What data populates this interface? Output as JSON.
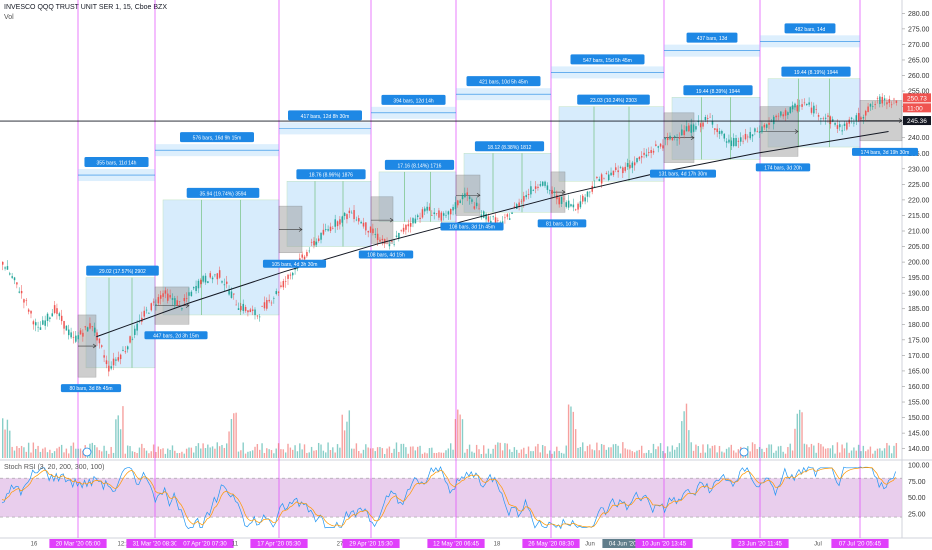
{
  "header": {
    "symbol": "INVESCO QQQ TRUST UNIT SER 1, 15, Cboe BZX",
    "volume_label": "Vol",
    "rsi_label": "Stoch RSI (3, 20, 200, 300, 100)"
  },
  "colors": {
    "up": "#26a69a",
    "down": "#ef5350",
    "session_line": "#e040fb",
    "box_blue": "#90caf9",
    "box_gray": "#9e9e9e",
    "box_green": "#4caf50",
    "label_blue": "#1e88e5",
    "rsi_fill": "#e1bee7",
    "rsi_k": "#2196f3",
    "rsi_d": "#ff9800"
  },
  "chart_data": [
    {
      "type": "line",
      "title": "",
      "y_ticks": [
        140,
        145,
        150,
        155,
        160,
        165,
        170,
        175,
        180,
        185,
        190,
        195,
        200,
        205,
        210,
        215,
        220,
        225,
        230,
        235,
        240,
        245,
        250,
        255,
        260,
        265,
        270,
        275,
        280
      ],
      "ylim": [
        137,
        283
      ],
      "price_markers": [
        {
          "value": "250.73",
          "color": "#ef5350"
        },
        {
          "value": "11:00",
          "color": "#ef5350"
        },
        {
          "value": "245.36",
          "color": "#131722"
        }
      ],
      "horizontal_line": 245.36,
      "x_axis_labels": [
        "16",
        "20 Mar '20 05:00",
        "12:25",
        "31 Mar '20 08:30",
        "07 Apr '20 07:30",
        "11",
        "17 Apr '20 05:30",
        "27",
        "29 Apr '20 15:30",
        "12 May '20 06:45",
        "18",
        "26 May '20 08:30",
        "Jun",
        "04 Jun '20 09:45",
        "10 Jun '20 13:45",
        "23 Jun '20 11:45",
        "Jul",
        "07 Jul '20 05:45"
      ],
      "price_path": [
        {
          "i": 0,
          "v": 200
        },
        {
          "i": 8,
          "v": 190
        },
        {
          "i": 15,
          "v": 178
        },
        {
          "i": 22,
          "v": 185
        },
        {
          "i": 30,
          "v": 175
        },
        {
          "i": 38,
          "v": 180
        },
        {
          "i": 45,
          "v": 166
        },
        {
          "i": 52,
          "v": 172
        },
        {
          "i": 60,
          "v": 183
        },
        {
          "i": 68,
          "v": 190
        },
        {
          "i": 76,
          "v": 186
        },
        {
          "i": 84,
          "v": 194
        },
        {
          "i": 92,
          "v": 196
        },
        {
          "i": 100,
          "v": 186
        },
        {
          "i": 108,
          "v": 183
        },
        {
          "i": 116,
          "v": 190
        },
        {
          "i": 124,
          "v": 198
        },
        {
          "i": 132,
          "v": 206
        },
        {
          "i": 140,
          "v": 212
        },
        {
          "i": 148,
          "v": 216
        },
        {
          "i": 156,
          "v": 210
        },
        {
          "i": 164,
          "v": 205
        },
        {
          "i": 172,
          "v": 212
        },
        {
          "i": 180,
          "v": 217
        },
        {
          "i": 188,
          "v": 214
        },
        {
          "i": 196,
          "v": 222
        },
        {
          "i": 204,
          "v": 215
        },
        {
          "i": 212,
          "v": 212
        },
        {
          "i": 220,
          "v": 220
        },
        {
          "i": 228,
          "v": 226
        },
        {
          "i": 236,
          "v": 220
        },
        {
          "i": 244,
          "v": 218
        },
        {
          "i": 252,
          "v": 226
        },
        {
          "i": 260,
          "v": 229
        },
        {
          "i": 268,
          "v": 232
        },
        {
          "i": 276,
          "v": 236
        },
        {
          "i": 284,
          "v": 240
        },
        {
          "i": 292,
          "v": 243
        },
        {
          "i": 300,
          "v": 246
        },
        {
          "i": 308,
          "v": 238
        },
        {
          "i": 316,
          "v": 240
        },
        {
          "i": 324,
          "v": 244
        },
        {
          "i": 332,
          "v": 248
        },
        {
          "i": 340,
          "v": 251
        },
        {
          "i": 348,
          "v": 247
        },
        {
          "i": 356,
          "v": 243
        },
        {
          "i": 364,
          "v": 247
        },
        {
          "i": 372,
          "v": 252
        }
      ],
      "curve": [
        {
          "i": 40,
          "v": 176
        },
        {
          "i": 80,
          "v": 187
        },
        {
          "i": 120,
          "v": 197
        },
        {
          "i": 160,
          "v": 206
        },
        {
          "i": 200,
          "v": 214
        },
        {
          "i": 240,
          "v": 222
        },
        {
          "i": 280,
          "v": 229
        },
        {
          "i": 320,
          "v": 235
        },
        {
          "i": 360,
          "v": 240
        },
        {
          "i": 376,
          "v": 242
        }
      ]
    },
    {
      "type": "line",
      "title": "",
      "y_ticks": [
        25,
        50,
        75,
        100
      ],
      "tick_labels": [
        "25.00",
        "50.00",
        "75.00",
        "100.00"
      ],
      "ylim": [
        0,
        105
      ],
      "band": [
        20,
        80
      ]
    }
  ],
  "annotations": {
    "bars_labels": [
      {
        "text": "355 bars, 11d 14h",
        "value": 228
      },
      {
        "text": "576 bars, 16d 9h 15m",
        "value": 236
      },
      {
        "text": "417 bars, 12d 8h 30m",
        "value": 243
      },
      {
        "text": "394 bars, 12d 14h",
        "value": 248
      },
      {
        "text": "421 bars, 10d 5h 45m",
        "value": 254
      },
      {
        "text": "547 bars, 15d 5h 45m",
        "value": 261
      },
      {
        "text": "437 bars, 13d",
        "value": 268
      },
      {
        "text": "482 bars, 14d",
        "value": 271
      }
    ],
    "gain_labels": [
      {
        "text": "29.02 (17.57%) 2902",
        "value": 195
      },
      {
        "text": "35.94 (19.74%) 3594",
        "value": 220
      },
      {
        "text": "18.76 (8.96%) 1876",
        "value": 226
      },
      {
        "text": "17.16 (8.14%) 1716",
        "value": 229
      },
      {
        "text": "18.12 (8.38%) 1812",
        "value": 235
      },
      {
        "text": "23.03 (10.24%) 2303",
        "value": 250
      },
      {
        "text": "19.44 (8.39%) 1944",
        "value": 253
      },
      {
        "text": "19.44 (8.19%) 1944",
        "value": 259
      }
    ],
    "small_labels": [
      "80 bars, 3d 8h 45m",
      "447 bars, 2d 3h 15m",
      "105 bars, 4d 3h 30m",
      "108 bars, 4d 15h",
      "108 bars, 3d 1h 45m",
      "81 bars, 1d 3h",
      "131 bars, 4d 17h 30m",
      "174 bars, 3d 20h",
      "174 bars, 3d 19h 30m"
    ]
  }
}
